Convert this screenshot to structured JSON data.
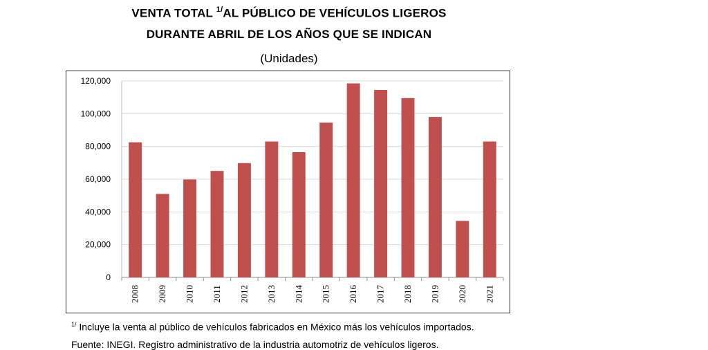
{
  "title": {
    "line1_pre": "VENTA TOTAL ",
    "line1_sup": "1/",
    "line1_post": "AL PÚBLICO DE VEHÍCULOS LIGEROS",
    "line2": "DURANTE ABRIL DE LOS AÑOS QUE SE INDICAN",
    "unit": "(Unidades)"
  },
  "chart_data": {
    "type": "bar",
    "categories": [
      "2008",
      "2009",
      "2010",
      "2011",
      "2012",
      "2013",
      "2014",
      "2015",
      "2016",
      "2017",
      "2018",
      "2019",
      "2020",
      "2021"
    ],
    "values": [
      82500,
      51000,
      59800,
      65000,
      69800,
      83000,
      76500,
      94500,
      118500,
      114500,
      109500,
      98000,
      34500,
      83000
    ],
    "ylim": [
      0,
      120000
    ],
    "yticks": [
      0,
      20000,
      40000,
      60000,
      80000,
      100000,
      120000
    ],
    "ytick_labels": [
      "0",
      "20,000",
      "40,000",
      "60,000",
      "80,000",
      "100,000",
      "120,000"
    ],
    "grid": true,
    "bar_color": "#c0504d",
    "grid_color": "#d9d9d9"
  },
  "footnote": {
    "sup": "1/",
    "text": " Incluye la venta al público de vehículos fabricados en México más los vehículos importados."
  },
  "source": "Fuente: INEGI. Registro administrativo de la industria automotriz de vehículos ligeros."
}
